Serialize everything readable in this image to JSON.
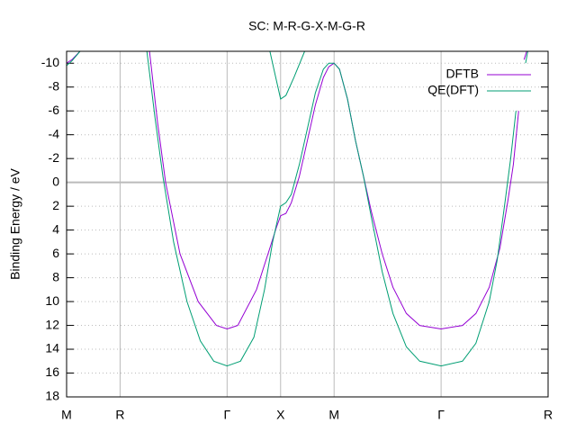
{
  "chart_data": {
    "type": "line",
    "title": "SC: M-R-G-X-M-G-R",
    "y_label": "Binding Energy / eV",
    "xlim": [
      0,
      9
    ],
    "xticks": [
      {
        "value": 0,
        "label": "M"
      },
      {
        "value": 1,
        "label": "R"
      },
      {
        "value": 3,
        "label": "Γ"
      },
      {
        "value": 4,
        "label": "X"
      },
      {
        "value": 5,
        "label": "M"
      },
      {
        "value": 7,
        "label": "Γ"
      },
      {
        "value": 9,
        "label": "R"
      }
    ],
    "ylim": [
      -11,
      18
    ],
    "y_reversed": true,
    "yticks": [
      -10,
      -8,
      -6,
      -4,
      -2,
      0,
      2,
      4,
      6,
      8,
      10,
      12,
      14,
      16,
      18
    ],
    "grid": true,
    "zero_line": true,
    "legend": "top-right",
    "series": [
      {
        "name": "DFTB",
        "color": "#9400d3",
        "x": [
          0,
          0.1,
          0.25,
          null,
          1.55,
          1.7,
          1.85,
          2.12,
          2.46,
          2.8,
          3,
          3.2,
          3.55,
          3.8,
          3.92,
          4,
          4.1,
          4.2,
          4.35,
          4.5,
          4.65,
          4.8,
          4.9,
          5,
          5.1,
          5.25,
          5.4,
          5.55,
          5.7,
          5.9,
          6.1,
          6.35,
          6.6,
          7,
          7.4,
          7.65,
          7.9,
          8.1,
          8.25,
          8.35,
          8.45,
          null,
          8.55,
          8.6
        ],
        "values": [
          -10,
          -10.3,
          -11,
          null,
          -11,
          -5,
          0,
          6,
          10,
          12,
          12.3,
          12,
          9,
          5.5,
          3.8,
          2.8,
          2.6,
          1.7,
          -0.5,
          -3.5,
          -6.5,
          -8.8,
          -9.7,
          -10,
          -9.5,
          -7,
          -3.5,
          -0.5,
          2.5,
          6,
          8.8,
          11,
          12,
          12.3,
          12,
          11,
          8.8,
          5.5,
          1.5,
          -1.5,
          -6,
          null,
          -10.3,
          -11
        ]
      },
      {
        "name": "QE(DFT)",
        "color": "#009e73",
        "x": [
          0,
          0.1,
          0.25,
          null,
          1.5,
          1.65,
          1.8,
          2,
          2.25,
          2.5,
          2.75,
          3,
          3.25,
          3.5,
          3.7,
          3.85,
          3.95,
          4,
          4.1,
          4.2,
          4.35,
          4.5,
          4.65,
          4.8,
          4.9,
          5,
          5.1,
          5.25,
          5.4,
          5.55,
          5.7,
          5.9,
          6.1,
          6.35,
          6.6,
          7,
          7.4,
          7.65,
          7.9,
          8.05,
          8.2,
          8.3,
          8.4,
          null,
          3.8,
          3.9,
          4,
          4.1,
          4.25,
          4.45,
          null,
          8.58,
          8.62
        ],
        "values": [
          -9.8,
          -10.2,
          -11,
          null,
          -11,
          -5.5,
          -0.5,
          5,
          10,
          13.3,
          15,
          15.4,
          15,
          13,
          9,
          5,
          3,
          2,
          1.7,
          1,
          -1.5,
          -4.5,
          -7.5,
          -9.5,
          -10,
          -10,
          -9.5,
          -7,
          -3.5,
          -0.5,
          3,
          7.5,
          11,
          13.8,
          15,
          15.4,
          15,
          13.5,
          10,
          6.5,
          1.5,
          -2,
          -6,
          null,
          -11,
          -9,
          -7,
          -7.3,
          -8.8,
          -11,
          null,
          -10,
          -11
        ]
      }
    ]
  }
}
